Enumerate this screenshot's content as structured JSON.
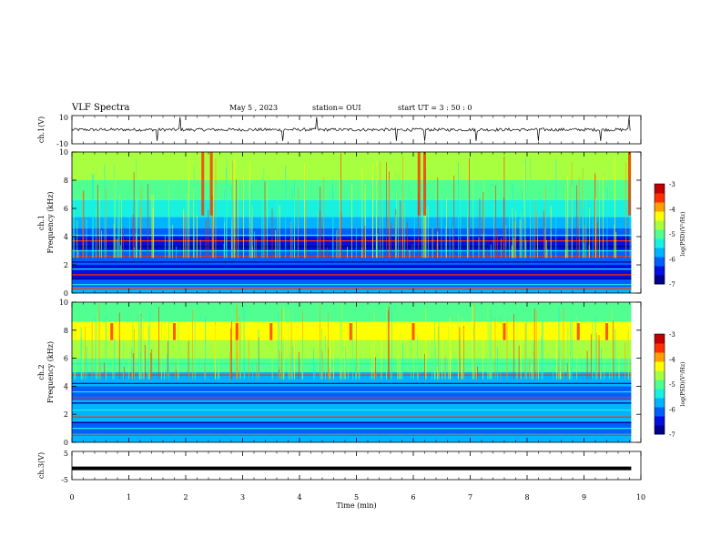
{
  "header": {
    "title": "VLF Spectra",
    "date": "May 5  , 2023",
    "station": "station= OUI",
    "start": "start  UT  =   3  : 50 : 0"
  },
  "colors": {
    "colormap": [
      "#00008c",
      "#0010e0",
      "#0060ff",
      "#00b4ff",
      "#18f0e0",
      "#50ff90",
      "#a8ff40",
      "#ffff00",
      "#ffa000",
      "#ff3000",
      "#c00000"
    ],
    "trace": "#000000",
    "axis": "#000000"
  },
  "chart_data": [
    {
      "type": "line",
      "title": "",
      "ylabel": "ch.1(V)",
      "xlim": [
        0,
        10
      ],
      "ylim": [
        -10,
        10
      ],
      "yticklabels": [
        "-10",
        "10"
      ],
      "description_values": {
        "baseline_V": 0,
        "x_end_min": 9.83
      }
    },
    {
      "type": "heatmap",
      "ylabel": "ch.1\nFrequency (kHz)",
      "ylim": [
        0,
        10
      ],
      "yticks": [
        0,
        2,
        4,
        6,
        8,
        10
      ],
      "colorbar": {
        "label": "log(PSD)(V²/Hz)",
        "range": [
          -7,
          -3
        ],
        "ticks": [
          -3,
          -4,
          -5,
          -6,
          -7
        ]
      }
    },
    {
      "type": "heatmap",
      "ylabel": "ch.2\nFrequency (kHz)",
      "ylim": [
        0,
        10
      ],
      "yticks": [
        0,
        2,
        4,
        6,
        8,
        10
      ],
      "colorbar": {
        "label": "log(PSD)(V²/Hz)",
        "range": [
          -7,
          -3
        ],
        "ticks": [
          -3,
          -4,
          -5,
          -6,
          -7
        ]
      }
    },
    {
      "type": "line",
      "ylabel": "ch.3(V)",
      "ylim": [
        -5,
        5
      ],
      "yticklabels": [
        "5",
        "-5"
      ],
      "values_note_value": -1,
      "xlabel": "Time  (min)",
      "xlim": [
        0,
        10
      ],
      "xticks": [
        "0",
        "1",
        "2",
        "3",
        "4",
        "5",
        "6",
        "7",
        "8",
        "9",
        "10"
      ]
    }
  ]
}
